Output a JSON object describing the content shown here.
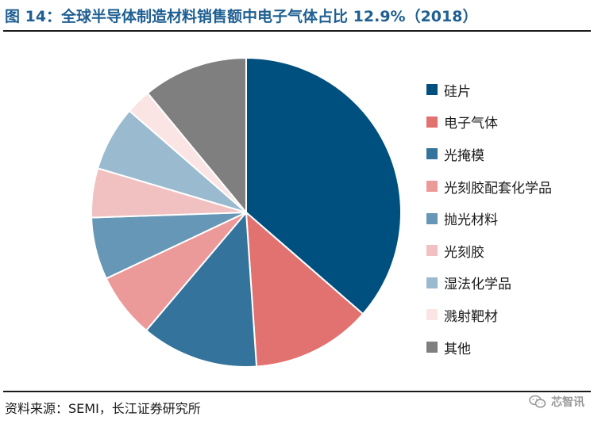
{
  "title": "图 14：全球半导体制造材料销售额中电子气体占比 12.9%（2018）",
  "source": "资料来源：SEMI，长江证券研究所",
  "watermark": "芯智讯",
  "watermark_icon": "wechat-icon",
  "chart_data": {
    "type": "pie",
    "title": "图 14：全球半导体制造材料销售额中电子气体占比 12.9%（2018）",
    "start_angle_deg": 0,
    "direction": "clockwise",
    "slices": [
      {
        "label": "硅片",
        "value": 37.5,
        "color": "#00507f"
      },
      {
        "label": "电子气体",
        "value": 12.9,
        "color": "#e27270"
      },
      {
        "label": "光掩模",
        "value": 12.6,
        "color": "#33739c"
      },
      {
        "label": "光刻胶配套化学品",
        "value": 7.0,
        "color": "#eb9a99"
      },
      {
        "label": "抛光材料",
        "value": 6.7,
        "color": "#6697b6"
      },
      {
        "label": "光刻胶",
        "value": 5.3,
        "color": "#f1c1c1"
      },
      {
        "label": "湿法化学品",
        "value": 7.0,
        "color": "#9abad0"
      },
      {
        "label": "溅射靶材",
        "value": 2.7,
        "color": "#fae4e4"
      },
      {
        "label": "其他",
        "value": 11.3,
        "color": "#7f7f7f"
      }
    ],
    "legend_position": "right"
  }
}
